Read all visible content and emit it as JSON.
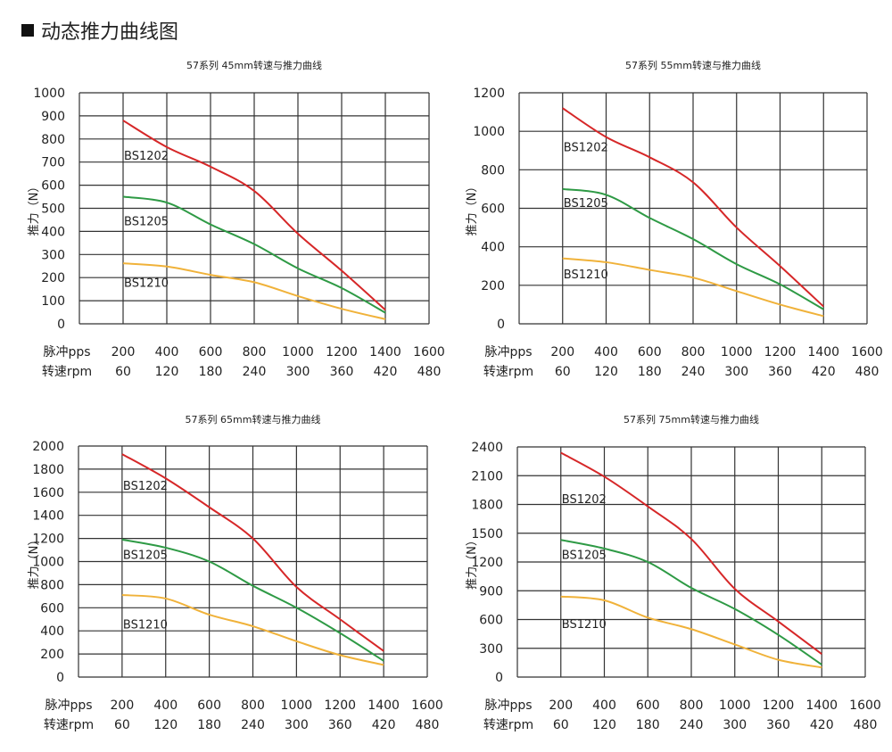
{
  "page_title": "动态推力曲线图",
  "colors": {
    "BS1202": "#d62728",
    "BS1205": "#2e9a45",
    "BS1210": "#f0b23a",
    "grid": "#333333"
  },
  "chart_data": [
    {
      "type": "line",
      "title": "57系列 45mm转速与推力曲线",
      "ylabel": "推力（N）",
      "xlabel_rows": [
        "脉冲pps",
        "转速rpm"
      ],
      "x_ticks_pps": [
        "200",
        "400",
        "600",
        "800",
        "1000",
        "1200",
        "1400",
        "1600"
      ],
      "x_ticks_rpm": [
        "60",
        "120",
        "180",
        "240",
        "300",
        "360",
        "420",
        "480"
      ],
      "xlim": [
        0,
        1600
      ],
      "ylim": [
        0,
        1000
      ],
      "y_ticks": [
        "0",
        "100",
        "200",
        "300",
        "400",
        "500",
        "600",
        "700",
        "800",
        "900",
        "1000"
      ],
      "x": [
        200,
        400,
        600,
        800,
        1000,
        1200,
        1400
      ],
      "series": [
        {
          "name": "BS1202",
          "values": [
            880,
            765,
            680,
            575,
            390,
            230,
            60
          ],
          "label_at": 730
        },
        {
          "name": "BS1205",
          "values": [
            550,
            525,
            430,
            345,
            240,
            155,
            48
          ],
          "label_at": 445
        },
        {
          "name": "BS1210",
          "values": [
            262,
            248,
            212,
            180,
            120,
            65,
            20
          ],
          "label_at": 180
        }
      ]
    },
    {
      "type": "line",
      "title": "57系列 55mm转速与推力曲线",
      "ylabel": "推力（N）",
      "xlabel_rows": [
        "脉冲pps",
        "转速rpm"
      ],
      "x_ticks_pps": [
        "200",
        "400",
        "600",
        "800",
        "1000",
        "1200",
        "1400",
        "1600"
      ],
      "x_ticks_rpm": [
        "60",
        "120",
        "180",
        "240",
        "300",
        "360",
        "420",
        "480"
      ],
      "xlim": [
        0,
        1600
      ],
      "ylim": [
        0,
        1200
      ],
      "y_ticks": [
        "0",
        "200",
        "400",
        "600",
        "800",
        "1000",
        "1200"
      ],
      "x": [
        200,
        400,
        600,
        800,
        1000,
        1200,
        1400
      ],
      "series": [
        {
          "name": "BS1202",
          "values": [
            1120,
            970,
            865,
            735,
            500,
            300,
            90
          ],
          "label_at": 920
        },
        {
          "name": "BS1205",
          "values": [
            700,
            670,
            550,
            440,
            310,
            205,
            75
          ],
          "label_at": 630
        },
        {
          "name": "BS1210",
          "values": [
            340,
            320,
            280,
            240,
            170,
            100,
            40
          ],
          "label_at": 260
        }
      ]
    },
    {
      "type": "line",
      "title": "57系列 65mm转速与推力曲线",
      "ylabel": "推力（N）",
      "xlabel_rows": [
        "脉冲pps",
        "转速rpm"
      ],
      "x_ticks_pps": [
        "200",
        "400",
        "600",
        "800",
        "1000",
        "1200",
        "1400",
        "1600"
      ],
      "x_ticks_rpm": [
        "60",
        "120",
        "180",
        "240",
        "300",
        "360",
        "420",
        "480"
      ],
      "xlim": [
        0,
        1600
      ],
      "ylim": [
        0,
        2000
      ],
      "y_ticks": [
        "0",
        "200",
        "400",
        "600",
        "800",
        "1000",
        "1200",
        "1400",
        "1600",
        "1800",
        "2000"
      ],
      "x": [
        200,
        400,
        600,
        800,
        1000,
        1200,
        1400
      ],
      "series": [
        {
          "name": "BS1202",
          "values": [
            1930,
            1720,
            1470,
            1200,
            780,
            500,
            225
          ],
          "label_at": 1660
        },
        {
          "name": "BS1205",
          "values": [
            1190,
            1120,
            1000,
            790,
            600,
            380,
            140
          ],
          "label_at": 1060
        },
        {
          "name": "BS1210",
          "values": [
            710,
            680,
            540,
            440,
            310,
            190,
            105
          ],
          "label_at": 460
        }
      ]
    },
    {
      "type": "line",
      "title": "57系列 75mm转速与推力曲线",
      "ylabel": "推力（N）",
      "xlabel_rows": [
        "脉冲pps",
        "转速rpm"
      ],
      "x_ticks_pps": [
        "200",
        "400",
        "600",
        "800",
        "1000",
        "1200",
        "1400",
        "1600"
      ],
      "x_ticks_rpm": [
        "60",
        "120",
        "180",
        "240",
        "300",
        "360",
        "420",
        "480"
      ],
      "xlim": [
        0,
        1600
      ],
      "ylim": [
        0,
        2400
      ],
      "y_ticks": [
        "0",
        "300",
        "600",
        "900",
        "1200",
        "1500",
        "1800",
        "2100",
        "2400"
      ],
      "x": [
        200,
        400,
        600,
        800,
        1000,
        1200,
        1400
      ],
      "series": [
        {
          "name": "BS1202",
          "values": [
            2340,
            2090,
            1780,
            1440,
            920,
            580,
            240
          ],
          "label_at": 1860
        },
        {
          "name": "BS1205",
          "values": [
            1430,
            1340,
            1200,
            930,
            710,
            440,
            130
          ],
          "label_at": 1280
        },
        {
          "name": "BS1210",
          "values": [
            840,
            800,
            620,
            500,
            340,
            180,
            100
          ],
          "label_at": 560
        }
      ]
    }
  ]
}
